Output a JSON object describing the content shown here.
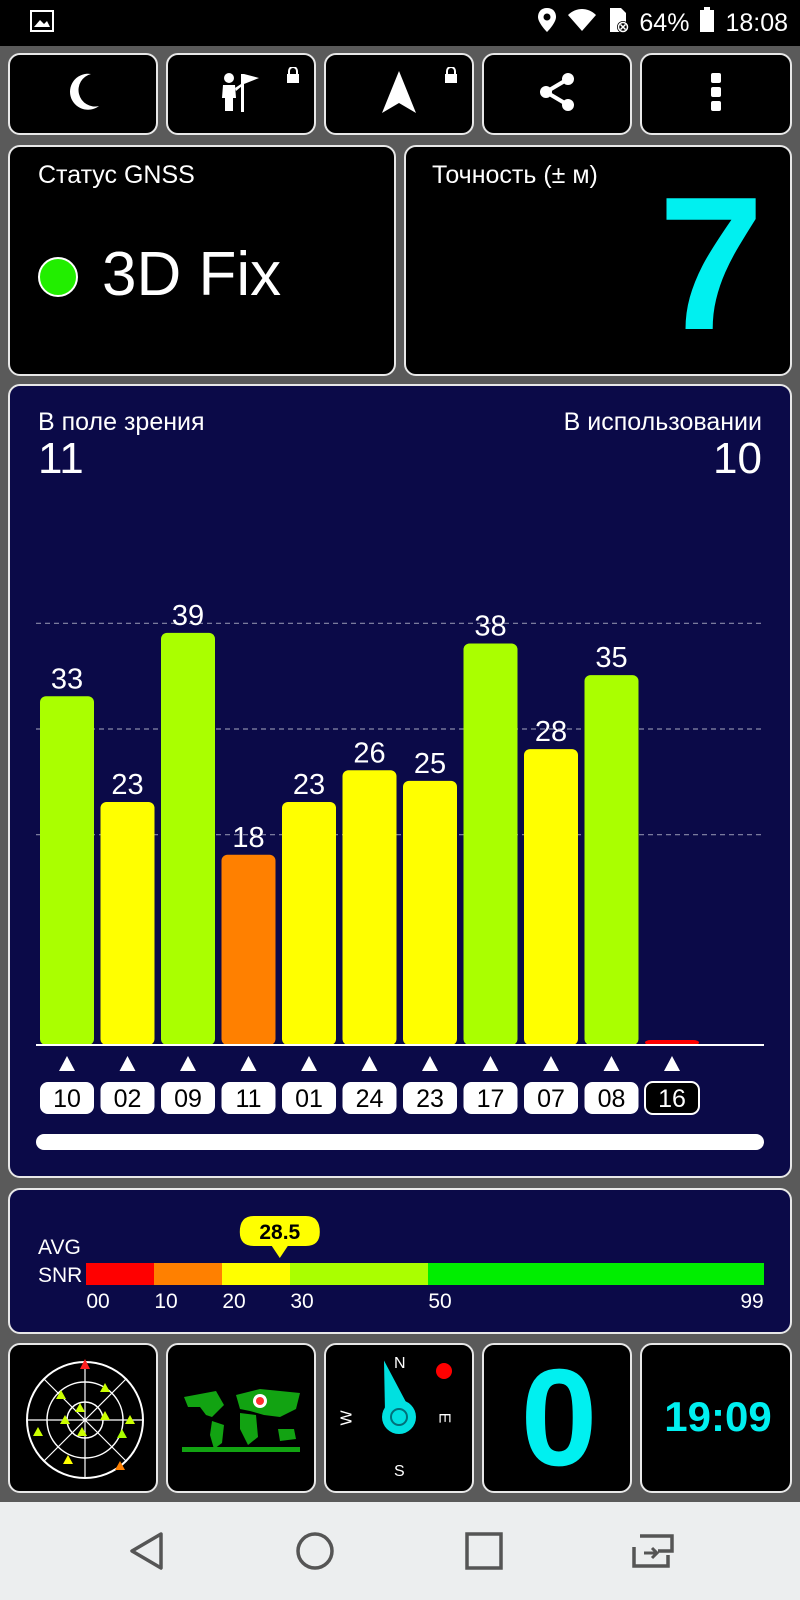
{
  "status_bar": {
    "battery_percent": "64%",
    "time": "18:08",
    "icons": [
      "image-icon",
      "location-icon",
      "wifi-icon",
      "no-sim-icon",
      "battery-icon"
    ]
  },
  "toolbar": {
    "buttons": [
      {
        "name": "night-mode-button",
        "icon": "moon-icon"
      },
      {
        "name": "person-flag-button",
        "icon": "person-flag-icon",
        "locked": true
      },
      {
        "name": "navigation-button",
        "icon": "navigation-arrow-icon",
        "locked": true
      },
      {
        "name": "share-button",
        "icon": "share-icon"
      },
      {
        "name": "more-button",
        "icon": "more-vertical-icon"
      }
    ]
  },
  "gnss": {
    "title": "Статус GNSS",
    "status": "3D Fix",
    "status_color": "#22ee00"
  },
  "accuracy": {
    "title": "Точность (± м)",
    "value": "7",
    "color": "#00f0f0"
  },
  "satellites": {
    "in_view_label": "В поле зрения",
    "in_view": "11",
    "in_use_label": "В использовании",
    "in_use": "10"
  },
  "chart_data": {
    "type": "bar",
    "categories": [
      "10",
      "02",
      "09",
      "11",
      "01",
      "24",
      "23",
      "17",
      "07",
      "08",
      "16"
    ],
    "values": [
      33,
      23,
      39,
      18,
      23,
      26,
      25,
      38,
      28,
      35,
      0
    ],
    "value_labels": [
      "33",
      "23",
      "39",
      "18",
      "23",
      "26",
      "25",
      "38",
      "28",
      "35",
      ""
    ],
    "colors": [
      "#aaff00",
      "#ffff00",
      "#aaff00",
      "#ff8000",
      "#ffff00",
      "#ffff00",
      "#ffff00",
      "#aaff00",
      "#ffff00",
      "#aaff00",
      "#ff0000"
    ],
    "in_use": [
      true,
      true,
      true,
      true,
      true,
      true,
      true,
      true,
      true,
      true,
      false
    ],
    "ylim": [
      0,
      60
    ],
    "grid": true
  },
  "snr": {
    "avg_label": "AVG",
    "snr_label": "SNR",
    "avg_value": "28.5",
    "avg": 28.5,
    "ticks": [
      "00",
      "10",
      "20",
      "30",
      "50",
      "99"
    ],
    "tick_values": [
      0,
      10,
      20,
      30,
      50,
      99
    ]
  },
  "bottom": {
    "speed": "0",
    "speed_color": "#00f0f0",
    "clock": "19:09",
    "compass_labels": {
      "n": "N",
      "s": "S",
      "e": "E",
      "w": "W"
    }
  },
  "navigation_bar": {
    "buttons": [
      "back-icon",
      "home-icon",
      "recents-icon",
      "screen-switch-icon"
    ]
  }
}
